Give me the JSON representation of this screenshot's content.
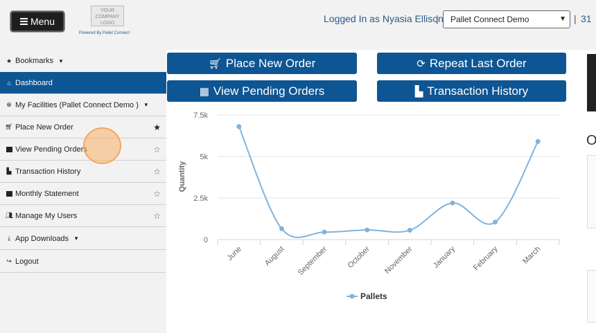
{
  "header": {
    "menu_label": "Menu",
    "logo_text": "YOUR COMPANY LOGO",
    "powered_by": "Powered By Pallet Connect",
    "logged_in_text": "Logged In as Nyasia Ellison",
    "separator": "|",
    "facility_selected": "Pallet Connect Demo",
    "trailing_number": "31"
  },
  "sidebar": {
    "items": [
      {
        "label": "Bookmarks",
        "icon": "star-icon",
        "has_caret": true
      },
      {
        "label": "Dashboard",
        "icon": "home-icon",
        "active": true
      },
      {
        "label": "My Facilities (Pallet Connect Demo )",
        "icon": "globe-icon",
        "has_caret": true
      },
      {
        "label": "Place New Order",
        "icon": "cart-icon",
        "bookmarked": true
      },
      {
        "label": "View Pending Orders",
        "icon": "table-icon",
        "bookmarked": false
      },
      {
        "label": "Transaction History",
        "icon": "bar-chart-icon",
        "bookmarked": false
      },
      {
        "label": "Monthly Statement",
        "icon": "statement-icon",
        "bookmarked": false
      },
      {
        "label": "Manage My Users",
        "icon": "users-icon",
        "bookmarked": false
      },
      {
        "label": "App Downloads",
        "icon": "download-icon",
        "has_caret": true
      },
      {
        "label": "Logout",
        "icon": "logout-icon"
      }
    ]
  },
  "actions": {
    "place_new_order": "Place New Order",
    "repeat_last_order": "Repeat Last Order",
    "view_pending_orders": "View Pending Orders",
    "transaction_history": "Transaction History"
  },
  "right_partial": {
    "letter": "O"
  },
  "colors": {
    "primary": "#0e5593",
    "series": "#7fb3e0"
  },
  "chart_data": {
    "type": "line",
    "categories": [
      "June",
      "August",
      "September",
      "October",
      "November",
      "January",
      "February",
      "March"
    ],
    "series": [
      {
        "name": "Pallets",
        "values": [
          6800,
          650,
          450,
          580,
          560,
          2200,
          1050,
          5900
        ]
      }
    ],
    "ylabel": "Quantity",
    "yticks": [
      "0",
      "2.5k",
      "5k",
      "7.5k"
    ],
    "ylim": [
      0,
      7500
    ],
    "grid": true,
    "legend": "bottom"
  }
}
